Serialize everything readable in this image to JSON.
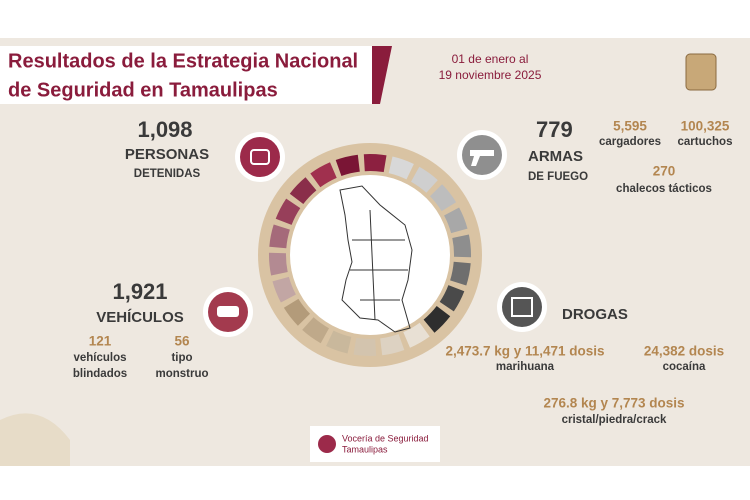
{
  "header": {
    "title_line1": "Resultados de la Estrategia Nacional",
    "title_line2": "de Seguridad en Tamaulipas",
    "date_line1": "01 de enero al",
    "date_line2": "19 noviembre 2025"
  },
  "detenidos": {
    "value": "1,098",
    "label_line1": "PERSONAS",
    "label_line2": "DETENIDAS"
  },
  "armas": {
    "value": "779",
    "label_line1": "ARMAS",
    "label_line2": "DE FUEGO",
    "items": [
      {
        "value": "5,595",
        "label": "cargadores"
      },
      {
        "value": "100,325",
        "label": "cartuchos"
      },
      {
        "value": "270",
        "label": "chalecos tácticos"
      }
    ]
  },
  "vehiculos": {
    "value": "1,921",
    "label": "VEHÍCULOS",
    "items": [
      {
        "value": "121",
        "label_line1": "vehículos",
        "label_line2": "blindados"
      },
      {
        "value": "56",
        "label_line1": "tipo",
        "label_line2": "monstruo"
      }
    ]
  },
  "drogas": {
    "label": "DROGAS",
    "items": [
      {
        "value": "2,473.7 kg y 11,471 dosis",
        "label": "marihuana"
      },
      {
        "value": "24,382 dosis",
        "label": "cocaína"
      },
      {
        "value": "276.8 kg y 7,773 dosis",
        "label": "cristal/piedra/crack"
      }
    ]
  },
  "footer": {
    "line1": "Vocería de Seguridad",
    "line2": "Tamaulipas"
  }
}
